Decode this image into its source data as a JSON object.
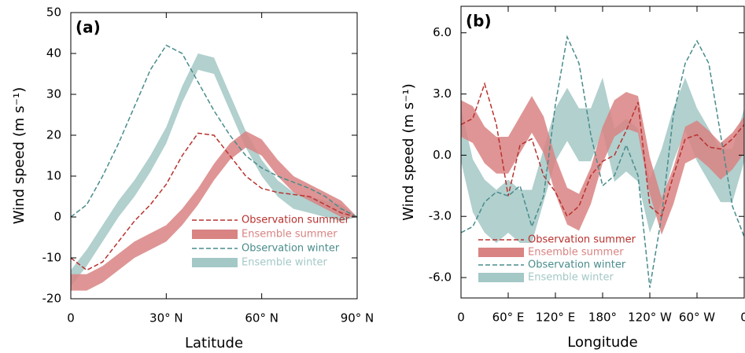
{
  "chart_data": [
    {
      "type": "line",
      "annotation": "(a)",
      "xlabel": "Latitude",
      "ylabel": "Wind speed (m s⁻¹)",
      "xlim": [
        0,
        90
      ],
      "ylim": [
        -20,
        50
      ],
      "xticks": [
        0,
        {
          "value": 30,
          "label": "30° N"
        },
        {
          "value": 60,
          "label": "60° N"
        },
        {
          "value": 90,
          "label": "90° N"
        }
      ],
      "yticks": [
        -20,
        -10,
        0,
        10,
        20,
        30,
        40,
        50
      ],
      "legend": "lower right",
      "x": [
        0,
        5,
        10,
        15,
        20,
        25,
        30,
        35,
        40,
        45,
        50,
        55,
        60,
        65,
        70,
        75,
        80,
        85,
        90
      ],
      "series": [
        {
          "name": "Observation summer",
          "color": "#b8322f",
          "values": [
            -10,
            -13,
            -11,
            -6,
            -1,
            3,
            8,
            15,
            20.5,
            20,
            15,
            10,
            7,
            6,
            5.5,
            5,
            3,
            1,
            0
          ]
        },
        {
          "name": "Ensemble summer",
          "color": "#d98383",
          "lower": [
            -18,
            -18,
            -16,
            -13,
            -10,
            -8,
            -6,
            -2,
            3,
            9,
            14,
            17,
            15,
            10,
            6,
            4,
            2,
            0,
            0
          ],
          "upper": [
            -14,
            -14,
            -12,
            -9,
            -6,
            -4,
            -2,
            2,
            7,
            13,
            18,
            21,
            19,
            14,
            10,
            8,
            6,
            4,
            0
          ]
        },
        {
          "name": "Observation winter",
          "color": "#4a8c8c",
          "values": [
            0,
            3,
            10,
            18,
            27,
            36,
            42,
            40,
            33,
            26,
            20,
            15,
            12,
            10,
            8.5,
            7,
            5,
            2,
            0
          ]
        },
        {
          "name": "Ensemble winter",
          "color": "#a3c8c6",
          "lower": [
            -17,
            -12,
            -6,
            0,
            5,
            11,
            18,
            28,
            36,
            35,
            26,
            17,
            10,
            5,
            2,
            1,
            0,
            -1,
            0
          ],
          "upper": [
            -13,
            -8,
            -2,
            4,
            9,
            15,
            22,
            32,
            40,
            39,
            30,
            21,
            14,
            9,
            6,
            5,
            4,
            3,
            0
          ]
        }
      ]
    },
    {
      "type": "line",
      "annotation": "(b)",
      "xlabel": "Longitude",
      "ylabel": "Wind speed (m s⁻¹)",
      "xlim": [
        0,
        360
      ],
      "ylim": [
        -7,
        7.3
      ],
      "xticks": [
        0,
        {
          "value": 60,
          "label": "60° E"
        },
        {
          "value": 120,
          "label": "120° E"
        },
        {
          "value": 180,
          "label": "180°"
        },
        {
          "value": 240,
          "label": "120° W"
        },
        {
          "value": 300,
          "label": "60° W"
        },
        {
          "value": 360,
          "label": "0"
        }
      ],
      "yticks": [
        {
          "value": -6,
          "label": "-6.0"
        },
        {
          "value": -3,
          "label": "-3.0"
        },
        {
          "value": 0,
          "label": "0.0"
        },
        {
          "value": 3,
          "label": "3.0"
        },
        {
          "value": 6,
          "label": "6.0"
        }
      ],
      "legend": "lower left",
      "x": [
        0,
        15,
        30,
        45,
        60,
        75,
        90,
        105,
        120,
        135,
        150,
        165,
        180,
        195,
        210,
        225,
        240,
        255,
        270,
        285,
        300,
        315,
        330,
        345,
        360
      ],
      "series": [
        {
          "name": "Observation summer",
          "color": "#b8322f",
          "values": [
            1.5,
            1.8,
            3.5,
            1.5,
            -2,
            0.5,
            0.8,
            -1,
            -1.8,
            -3,
            -2.5,
            -1,
            -0.3,
            0,
            1.2,
            2.6,
            -2.5,
            -3,
            -1,
            0.8,
            1,
            0.4,
            0.3,
            0.8,
            1.5
          ]
        },
        {
          "name": "Ensemble summer",
          "color": "#d98383",
          "lower": [
            0.9,
            0.6,
            -0.4,
            -0.9,
            -0.9,
            0.1,
            1.1,
            0.1,
            -1.9,
            -3.4,
            -3.7,
            -2.4,
            -0.4,
            0.9,
            1.3,
            1.1,
            -1.9,
            -3.9,
            -2.4,
            -0.4,
            -0.1,
            -0.6,
            -1.2,
            -0.7,
            0.1
          ],
          "upper": [
            2.7,
            2.4,
            1.4,
            0.9,
            0.9,
            1.9,
            2.9,
            1.9,
            -0.1,
            -1.6,
            -1.9,
            -0.6,
            1.4,
            2.7,
            3.1,
            2.9,
            -0.1,
            -2.1,
            -0.6,
            1.4,
            1.7,
            1.2,
            0.6,
            1.1,
            1.9
          ]
        },
        {
          "name": "Observation winter",
          "color": "#4a8c8c",
          "values": [
            -3.8,
            -3.5,
            -2.3,
            -1.8,
            -2,
            -1.5,
            -3.5,
            -2,
            2.5,
            5.8,
            4.5,
            1,
            -1.5,
            -1,
            0.5,
            -1,
            -6.5,
            -3,
            2,
            4.5,
            5.6,
            4.5,
            1,
            -2.5,
            -4
          ]
        },
        {
          "name": "Ensemble winter",
          "color": "#a3c8c6",
          "lower": [
            -0.3,
            -2.8,
            -3.8,
            -4.3,
            -3.8,
            -4.3,
            -4.3,
            -2.3,
            -0.3,
            0.7,
            -0.3,
            -0.3,
            1.2,
            -1.3,
            -0.8,
            -1.3,
            -3.8,
            -2.3,
            -0.3,
            1.2,
            -0.3,
            -1.3,
            -2.3,
            -2.3,
            -0.3
          ],
          "upper": [
            2.3,
            -0.2,
            -1.2,
            -1.7,
            -1.2,
            -1.7,
            -1.7,
            0.3,
            2.3,
            3.3,
            2.3,
            2.3,
            3.8,
            1.3,
            1.8,
            1.3,
            -1.2,
            0.3,
            2.3,
            3.8,
            2.3,
            1.3,
            0.3,
            0.3,
            2.3
          ]
        }
      ]
    }
  ]
}
